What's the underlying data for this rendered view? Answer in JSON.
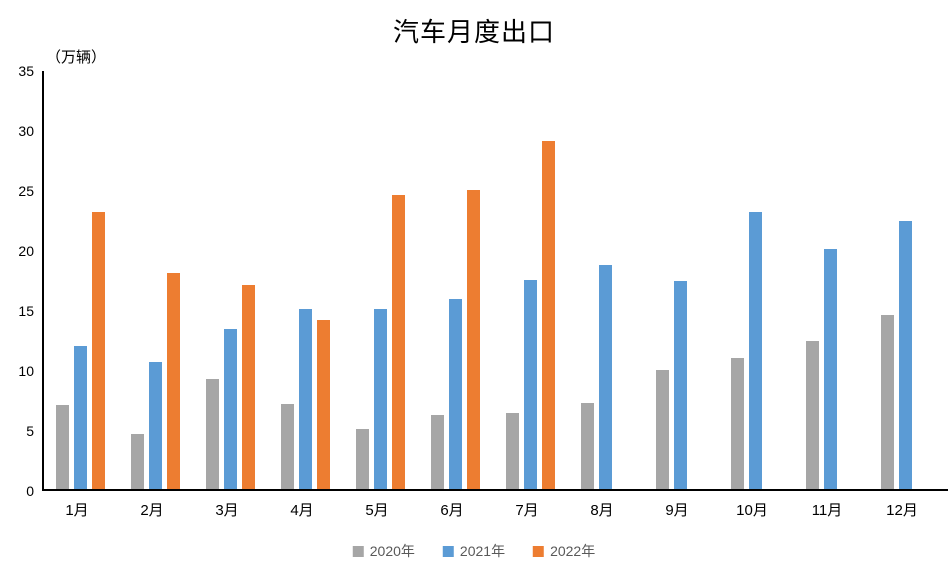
{
  "chart_data": {
    "type": "bar",
    "title": "汽车月度出口",
    "unit_label": "（万辆）",
    "categories": [
      "1月",
      "2月",
      "3月",
      "4月",
      "5月",
      "6月",
      "7月",
      "8月",
      "9月",
      "10月",
      "11月",
      "12月"
    ],
    "series": [
      {
        "name": "2020年",
        "color": "#A6A6A6",
        "values": [
          7.0,
          4.6,
          9.2,
          7.1,
          5.0,
          6.2,
          6.3,
          7.2,
          9.9,
          10.9,
          12.3,
          14.5
        ]
      },
      {
        "name": "2021年",
        "color": "#5B9BD5",
        "values": [
          11.9,
          10.6,
          13.3,
          15.0,
          15.0,
          15.8,
          17.4,
          18.7,
          17.3,
          23.1,
          20.0,
          22.3
        ]
      },
      {
        "name": "2022年",
        "color": "#ED7D31",
        "values": [
          23.1,
          18.0,
          17.0,
          14.1,
          24.5,
          24.9,
          29.0,
          null,
          null,
          null,
          null,
          null
        ]
      }
    ],
    "xlabel": "",
    "ylabel": "（万辆）",
    "ylim": [
      0,
      35
    ],
    "yticks": [
      0,
      5,
      10,
      15,
      20,
      25,
      30,
      35
    ],
    "grid": false,
    "legend_position": "bottom",
    "axis_color": "#000000",
    "legend_text_color": "#595959"
  }
}
